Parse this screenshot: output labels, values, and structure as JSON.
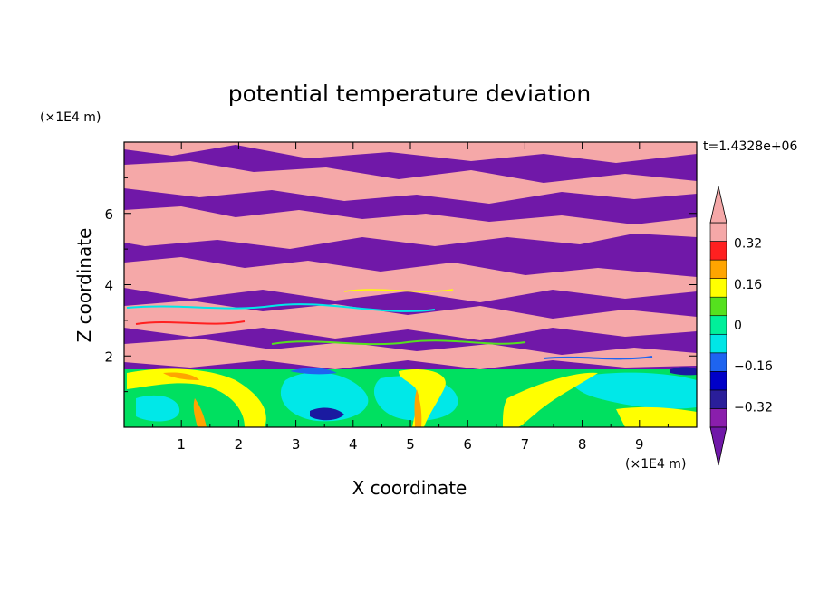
{
  "chart_data": {
    "type": "heatmap",
    "title": "potential temperature deviation",
    "xlabel": "X coordinate",
    "ylabel": "Z coordinate",
    "x_unit": "(×1E4 m)",
    "y_unit": "(×1E4 m)",
    "time_label": "t=1.4328e+06",
    "xlim": [
      0,
      10
    ],
    "ylim": [
      0,
      8
    ],
    "x_ticks": [
      1,
      2,
      3,
      4,
      5,
      6,
      7,
      8,
      9
    ],
    "y_ticks": [
      2,
      4,
      6
    ],
    "colorbar": {
      "levels": [
        -0.4,
        -0.32,
        -0.24,
        -0.16,
        -0.08,
        0,
        0.08,
        0.16,
        0.24,
        0.32,
        0.4
      ],
      "tick_labels": [
        "0.32",
        "0.16",
        "0",
        "−0.16",
        "−0.32"
      ],
      "tick_values": [
        0.32,
        0.16,
        0,
        -0.16,
        -0.32
      ],
      "colors_low_to_high": [
        "#8a1eac",
        "#2a1e9a",
        "#0000c8",
        "#1e64f0",
        "#00e6e6",
        "#00f09a",
        "#55e11e",
        "#ffff00",
        "#ffa500",
        "#ff2020",
        "#f5a8a8"
      ],
      "under_color": "#7018a8",
      "over_color": "#f5a8a8"
    },
    "description_bands": [
      {
        "z_range": [
          0,
          1.7
        ],
        "dominant": "mixed -0.2 to 0.3 (greens, cyans, yellows)"
      },
      {
        "z_range": [
          1.7,
          8
        ],
        "dominant": "alternating layers of > 0.4 and < -0.4"
      }
    ]
  },
  "colors": {
    "pink": "#f5a8a8",
    "purple": "#7018a8",
    "green": "#00e060",
    "cyan": "#00e8e8",
    "yellow": "#ffff00",
    "orange": "#ffa500",
    "red": "#ff2020",
    "blue": "#1e64f0",
    "navy": "#1a1aa0",
    "lime": "#55e11e"
  }
}
